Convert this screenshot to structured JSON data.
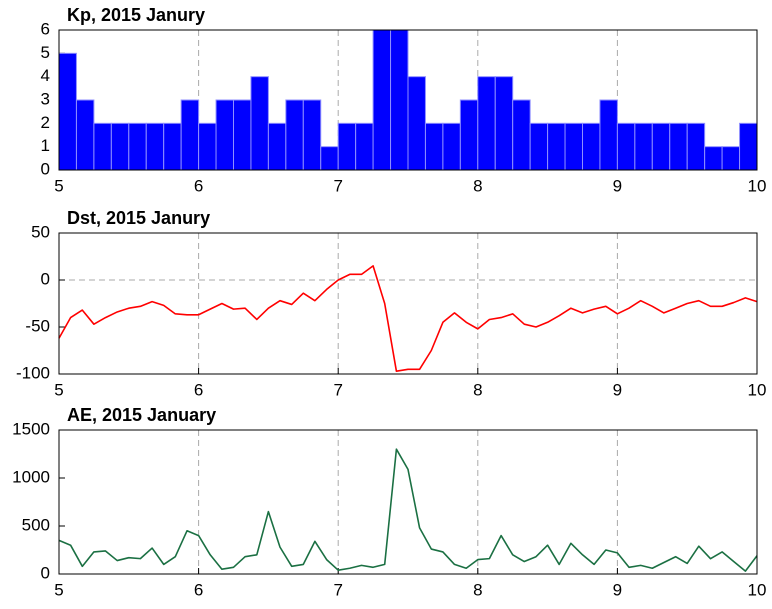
{
  "chart_data": [
    {
      "type": "histogram",
      "title": "Kp, 2015 Janury",
      "color": "#0000ff",
      "edge_color": "#8f8fff",
      "bins": [
        5,
        5.125,
        5.25,
        5.375,
        5.5,
        5.625,
        5.75,
        5.875,
        6,
        6.125,
        6.25,
        6.375,
        6.5,
        6.625,
        6.75,
        6.875,
        7,
        7.125,
        7.25,
        7.375,
        7.5,
        7.625,
        7.75,
        7.875,
        8,
        8.125,
        8.25,
        8.375,
        8.5,
        8.625,
        8.75,
        8.875,
        9,
        9.125,
        9.25,
        9.375,
        9.5,
        9.625,
        9.75,
        9.875,
        10
      ],
      "values": [
        5,
        3,
        2,
        2,
        2,
        2,
        2,
        3,
        2,
        3,
        3,
        4,
        2,
        3,
        3,
        1,
        2,
        2,
        6,
        6,
        4,
        2,
        2,
        3,
        4,
        4,
        3,
        2,
        2,
        2,
        2,
        3,
        2,
        2,
        2,
        2,
        2,
        1,
        1,
        2
      ],
      "xlim": [
        5,
        10
      ],
      "xticks": [
        5,
        6,
        7,
        8,
        9,
        10
      ],
      "ylim": [
        0,
        6
      ],
      "yticks": [
        0,
        1,
        2,
        3,
        4,
        5,
        6
      ],
      "grid": "x"
    },
    {
      "type": "line",
      "title": "Dst, 2015 Janury",
      "color": "#ff0000",
      "x": [
        5,
        5.083,
        5.167,
        5.25,
        5.333,
        5.417,
        5.5,
        5.583,
        5.667,
        5.75,
        5.833,
        5.917,
        6,
        6.083,
        6.167,
        6.25,
        6.333,
        6.417,
        6.5,
        6.583,
        6.667,
        6.75,
        6.833,
        6.917,
        7,
        7.083,
        7.167,
        7.25,
        7.333,
        7.417,
        7.5,
        7.583,
        7.667,
        7.75,
        7.833,
        7.917,
        8,
        8.083,
        8.167,
        8.25,
        8.333,
        8.417,
        8.5,
        8.583,
        8.667,
        8.75,
        8.833,
        8.917,
        9,
        9.083,
        9.167,
        9.25,
        9.333,
        9.417,
        9.5,
        9.583,
        9.667,
        9.75,
        9.833,
        9.917,
        10
      ],
      "values": [
        -62,
        -40,
        -32,
        -47,
        -40,
        -34,
        -30,
        -28,
        -23,
        -27,
        -36,
        -37,
        -37,
        -31,
        -25,
        -31,
        -30,
        -42,
        -30,
        -22,
        -26,
        -14,
        -22,
        -10,
        0,
        6,
        6,
        15,
        -25,
        -97,
        -95,
        -95,
        -75,
        -45,
        -35,
        -45,
        -52,
        -42,
        -40,
        -36,
        -47,
        -50,
        -45,
        -38,
        -30,
        -35,
        -31,
        -28,
        -36,
        -30,
        -22,
        -28,
        -35,
        -30,
        -25,
        -22,
        -28,
        -28,
        -24,
        -19,
        -23
      ],
      "xlim": [
        5,
        10
      ],
      "xticks": [
        5,
        6,
        7,
        8,
        9,
        10
      ],
      "ylim": [
        -100,
        50
      ],
      "yticks": [
        -100,
        -50,
        0,
        50
      ],
      "grid": "x",
      "zero_line": true
    },
    {
      "type": "line",
      "title": "AE, 2015 January",
      "color": "#1b7043",
      "x": [
        5,
        5.083,
        5.167,
        5.25,
        5.333,
        5.417,
        5.5,
        5.583,
        5.667,
        5.75,
        5.833,
        5.917,
        6,
        6.083,
        6.167,
        6.25,
        6.333,
        6.417,
        6.5,
        6.583,
        6.667,
        6.75,
        6.833,
        6.917,
        7,
        7.083,
        7.167,
        7.25,
        7.333,
        7.417,
        7.5,
        7.583,
        7.667,
        7.75,
        7.833,
        7.917,
        8,
        8.083,
        8.167,
        8.25,
        8.333,
        8.417,
        8.5,
        8.583,
        8.667,
        8.75,
        8.833,
        8.917,
        9,
        9.083,
        9.167,
        9.25,
        9.333,
        9.417,
        9.5,
        9.583,
        9.667,
        9.75,
        9.833,
        9.917,
        10
      ],
      "values": [
        350,
        300,
        80,
        230,
        240,
        140,
        170,
        160,
        270,
        100,
        180,
        450,
        400,
        200,
        50,
        70,
        180,
        200,
        650,
        280,
        80,
        100,
        340,
        150,
        40,
        60,
        90,
        70,
        100,
        1300,
        1090,
        480,
        260,
        230,
        100,
        60,
        150,
        160,
        400,
        200,
        130,
        180,
        300,
        100,
        320,
        200,
        100,
        250,
        220,
        70,
        90,
        60,
        120,
        180,
        110,
        290,
        160,
        230,
        130,
        30,
        190
      ],
      "xlim": [
        5,
        10
      ],
      "xticks": [
        5,
        6,
        7,
        8,
        9,
        10
      ],
      "ylim": [
        0,
        1500
      ],
      "yticks": [
        0,
        500,
        1000,
        1500
      ],
      "grid": "x"
    }
  ]
}
